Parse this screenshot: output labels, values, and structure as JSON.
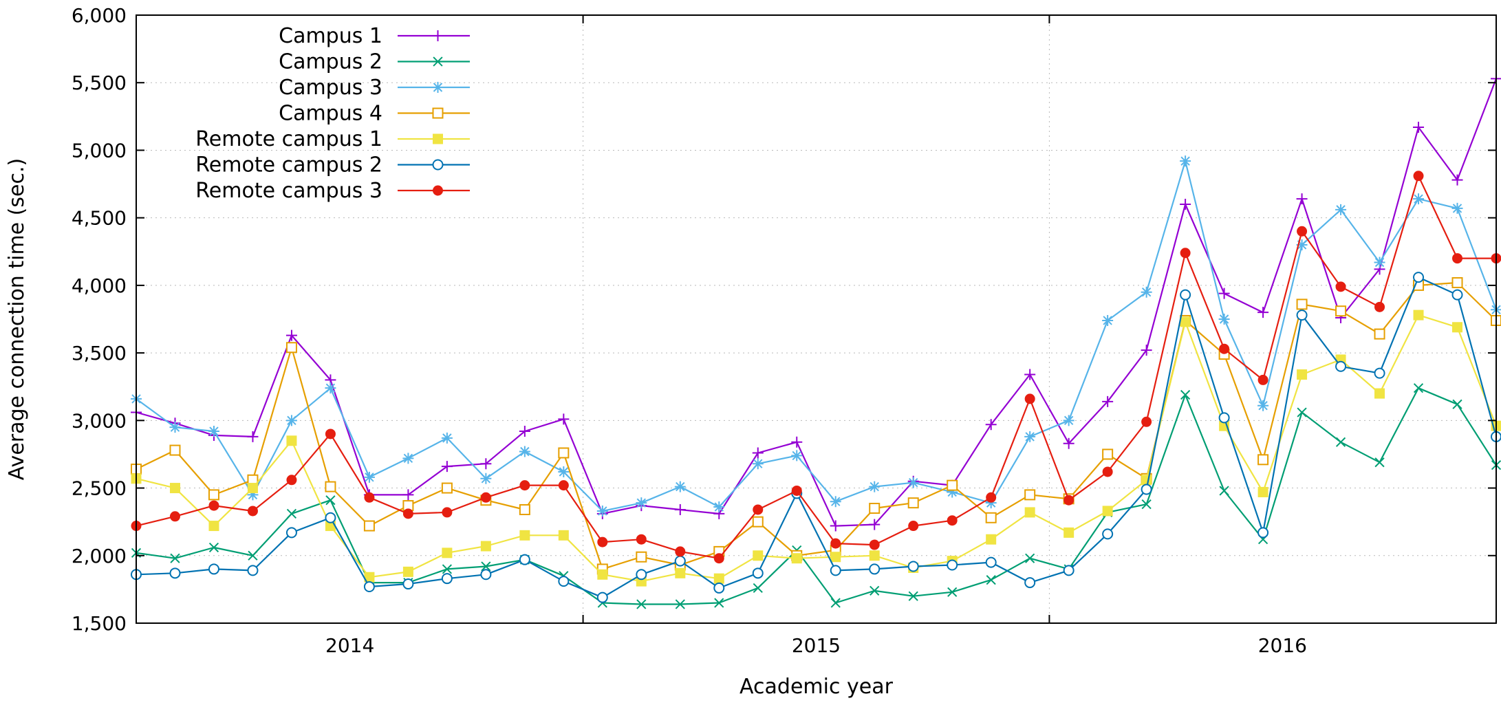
{
  "chart_data": {
    "type": "line",
    "title": "",
    "xlabel": "Academic year",
    "ylabel": "Average connection time (sec.)",
    "ylim": [
      1500,
      6000
    ],
    "yticks": [
      1500,
      2000,
      2500,
      3000,
      3500,
      4000,
      4500,
      5000,
      5500,
      6000
    ],
    "ytick_labels": [
      "1,500",
      "2,000",
      "2,500",
      "3,000",
      "3,500",
      "4,000",
      "4,500",
      "5,000",
      "5,500",
      "6,000"
    ],
    "x_month_count": 36,
    "year_labels": [
      {
        "label": "2014",
        "at_month": 5.5
      },
      {
        "label": "2015",
        "at_month": 17.5
      },
      {
        "label": "2016",
        "at_month": 29.5
      }
    ],
    "year_boundaries": [
      11.5,
      23.5
    ],
    "grid": true,
    "legend_position": "top-left",
    "series": [
      {
        "name": "Campus 1",
        "color": "#9400d3",
        "marker": "plus",
        "values": [
          3060,
          2980,
          2890,
          2880,
          3630,
          3300,
          2450,
          2450,
          2660,
          2680,
          2920,
          3010,
          2310,
          2370,
          2340,
          2310,
          2760,
          2840,
          2220,
          2230,
          2550,
          2520,
          2970,
          3340,
          2830,
          3140,
          3520,
          4600,
          3940,
          3800,
          4640,
          3760,
          4120,
          5170,
          4780,
          5530
        ]
      },
      {
        "name": "Campus 2",
        "color": "#009e73",
        "marker": "x",
        "values": [
          2020,
          1980,
          2060,
          2000,
          2310,
          2410,
          1800,
          1800,
          1900,
          1920,
          1970,
          1850,
          1650,
          1640,
          1640,
          1650,
          1760,
          2040,
          1650,
          1740,
          1700,
          1730,
          1820,
          1980,
          1900,
          2320,
          2380,
          3190,
          2480,
          2120,
          3060,
          2840,
          2690,
          3240,
          3120,
          2670
        ]
      },
      {
        "name": "Campus 3",
        "color": "#56b4e9",
        "marker": "star",
        "values": [
          3160,
          2950,
          2920,
          2450,
          3000,
          3240,
          2580,
          2720,
          2870,
          2570,
          2770,
          2620,
          2330,
          2390,
          2510,
          2360,
          2680,
          2740,
          2400,
          2510,
          2540,
          2470,
          2390,
          2880,
          3000,
          3740,
          3950,
          4920,
          3750,
          3110,
          4300,
          4560,
          4170,
          4640,
          4570,
          3820
        ]
      },
      {
        "name": "Campus 4",
        "color": "#e69f00",
        "marker": "square-open",
        "values": [
          2640,
          2780,
          2450,
          2560,
          3540,
          2510,
          2220,
          2370,
          2500,
          2410,
          2340,
          2760,
          1900,
          1990,
          1930,
          2030,
          2250,
          2000,
          2040,
          2350,
          2390,
          2520,
          2280,
          2450,
          2420,
          2750,
          2570,
          3740,
          3490,
          2710,
          3860,
          3810,
          3640,
          4000,
          4020,
          3740
        ]
      },
      {
        "name": "Remote campus 1",
        "color": "#f0e442",
        "marker": "square-filled",
        "values": [
          2570,
          2500,
          2220,
          2500,
          2850,
          2220,
          1840,
          1880,
          2020,
          2070,
          2150,
          2150,
          1860,
          1810,
          1870,
          1830,
          2000,
          1980,
          1990,
          2000,
          1910,
          1960,
          2120,
          2320,
          2170,
          2330,
          2560,
          3730,
          2960,
          2470,
          3340,
          3450,
          3200,
          3780,
          3690,
          2960
        ]
      },
      {
        "name": "Remote campus 2",
        "color": "#0072b2",
        "marker": "circle-open",
        "values": [
          1860,
          1870,
          1900,
          1890,
          2170,
          2280,
          1770,
          1790,
          1830,
          1860,
          1970,
          1810,
          1690,
          1860,
          1960,
          1760,
          1870,
          2460,
          1890,
          1900,
          1920,
          1930,
          1950,
          1800,
          1890,
          2160,
          2490,
          3930,
          3020,
          2170,
          3780,
          3400,
          3350,
          4060,
          3930,
          2880
        ]
      },
      {
        "name": "Remote campus 3",
        "color": "#e51e10",
        "marker": "circle-filled",
        "values": [
          2220,
          2290,
          2370,
          2330,
          2560,
          2900,
          2430,
          2310,
          2320,
          2430,
          2520,
          2520,
          2100,
          2120,
          2030,
          1980,
          2340,
          2480,
          2090,
          2080,
          2220,
          2260,
          2430,
          3160,
          2410,
          2620,
          2990,
          4240,
          3530,
          3300,
          4400,
          3990,
          3840,
          4810,
          4200,
          4200
        ]
      }
    ]
  }
}
